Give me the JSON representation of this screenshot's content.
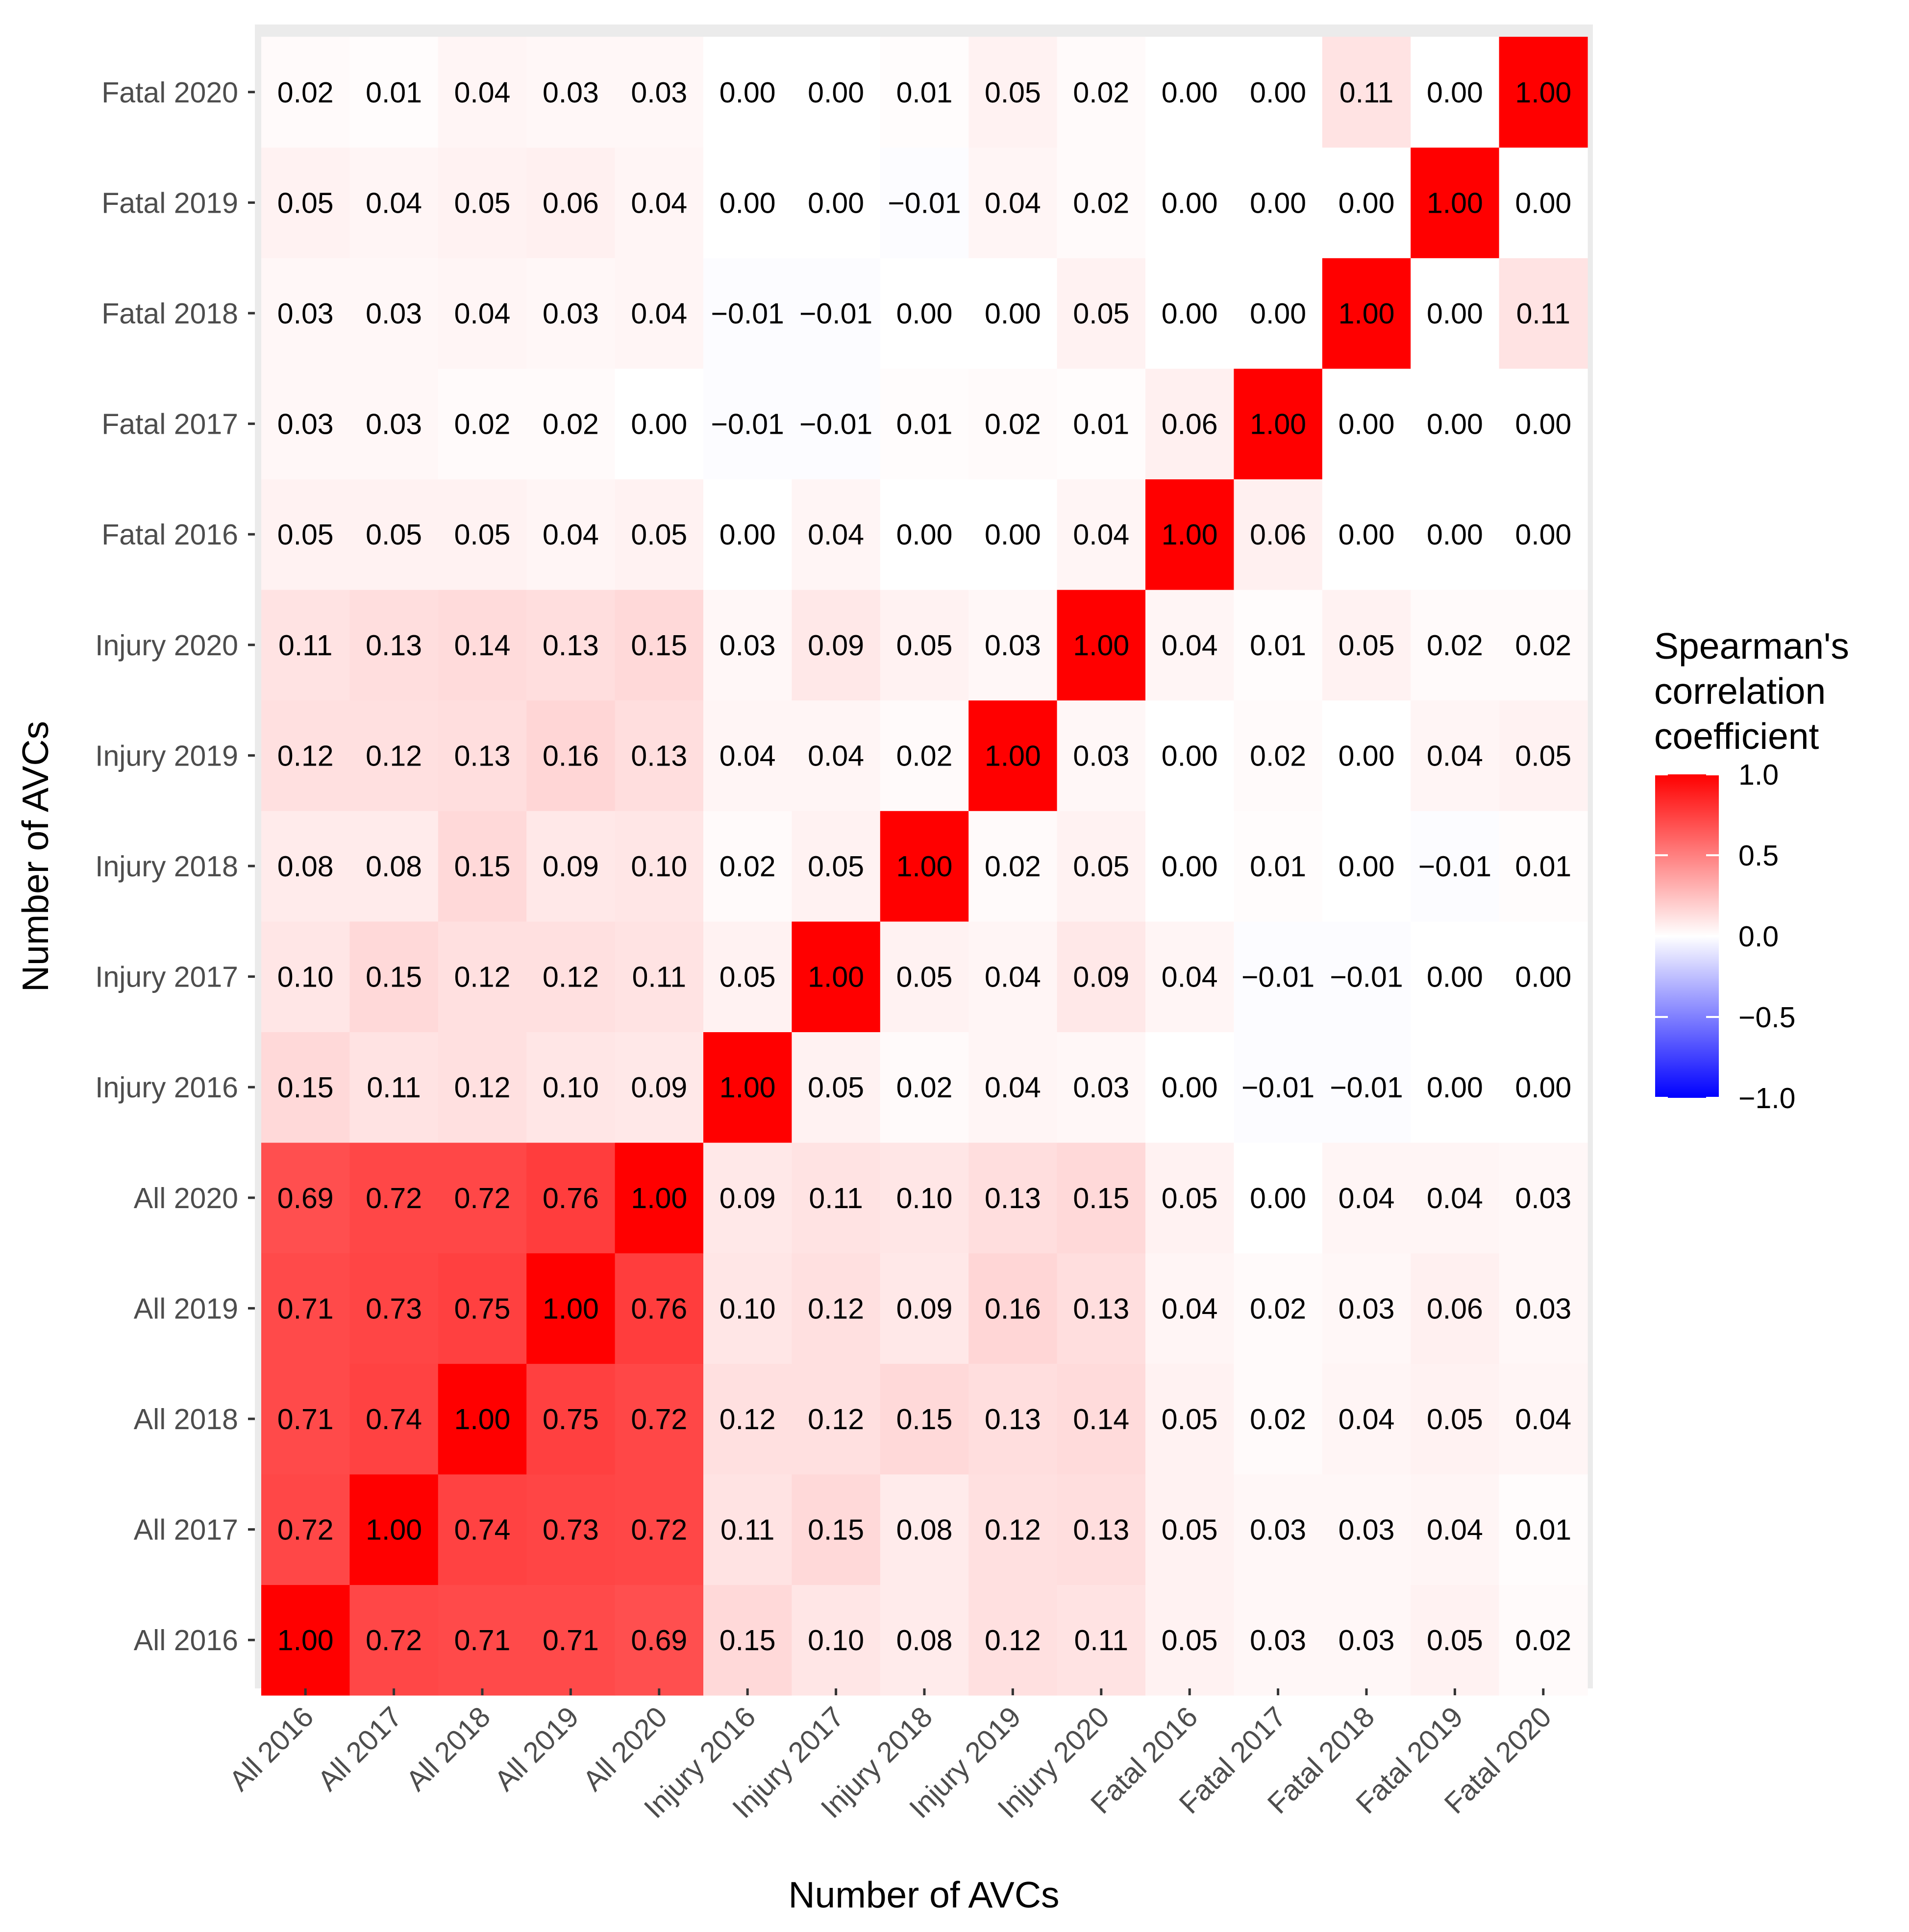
{
  "chart_data": {
    "type": "heatmap",
    "title": "",
    "xlabel": "Number of AVCs",
    "ylabel": "Number of AVCs",
    "categories": [
      "All 2016",
      "All 2017",
      "All 2018",
      "All 2019",
      "All 2020",
      "Injury 2016",
      "Injury 2017",
      "Injury 2018",
      "Injury 2019",
      "Injury 2020",
      "Fatal 2016",
      "Fatal 2017",
      "Fatal 2018",
      "Fatal 2019",
      "Fatal 2020"
    ],
    "matrix": [
      [
        1.0,
        0.72,
        0.71,
        0.71,
        0.69,
        0.15,
        0.1,
        0.08,
        0.12,
        0.11,
        0.05,
        0.03,
        0.03,
        0.05,
        0.02
      ],
      [
        0.72,
        1.0,
        0.74,
        0.73,
        0.72,
        0.11,
        0.15,
        0.08,
        0.12,
        0.13,
        0.05,
        0.03,
        0.03,
        0.04,
        0.01
      ],
      [
        0.71,
        0.74,
        1.0,
        0.75,
        0.72,
        0.12,
        0.12,
        0.15,
        0.13,
        0.14,
        0.05,
        0.02,
        0.04,
        0.05,
        0.04
      ],
      [
        0.71,
        0.73,
        0.75,
        1.0,
        0.76,
        0.1,
        0.12,
        0.09,
        0.16,
        0.13,
        0.04,
        0.02,
        0.03,
        0.06,
        0.03
      ],
      [
        0.69,
        0.72,
        0.72,
        0.76,
        1.0,
        0.09,
        0.11,
        0.1,
        0.13,
        0.15,
        0.05,
        0.0,
        0.04,
        0.04,
        0.03
      ],
      [
        0.15,
        0.11,
        0.12,
        0.1,
        0.09,
        1.0,
        0.05,
        0.02,
        0.04,
        0.03,
        0.0,
        -0.01,
        -0.01,
        0.0,
        0.0
      ],
      [
        0.1,
        0.15,
        0.12,
        0.12,
        0.11,
        0.05,
        1.0,
        0.05,
        0.04,
        0.09,
        0.04,
        -0.01,
        -0.01,
        0.0,
        0.0
      ],
      [
        0.08,
        0.08,
        0.15,
        0.09,
        0.1,
        0.02,
        0.05,
        1.0,
        0.02,
        0.05,
        0.0,
        0.01,
        0.0,
        -0.01,
        0.01
      ],
      [
        0.12,
        0.12,
        0.13,
        0.16,
        0.13,
        0.04,
        0.04,
        0.02,
        1.0,
        0.03,
        0.0,
        0.02,
        0.0,
        0.04,
        0.05
      ],
      [
        0.11,
        0.13,
        0.14,
        0.13,
        0.15,
        0.03,
        0.09,
        0.05,
        0.03,
        1.0,
        0.04,
        0.01,
        0.05,
        0.02,
        0.02
      ],
      [
        0.05,
        0.05,
        0.05,
        0.04,
        0.05,
        0.0,
        0.04,
        0.0,
        0.0,
        0.04,
        1.0,
        0.06,
        0.0,
        0.0,
        0.0
      ],
      [
        0.03,
        0.03,
        0.02,
        0.02,
        0.0,
        -0.01,
        -0.01,
        0.01,
        0.02,
        0.01,
        0.06,
        1.0,
        0.0,
        0.0,
        0.0
      ],
      [
        0.03,
        0.03,
        0.04,
        0.03,
        0.04,
        -0.01,
        -0.01,
        0.0,
        0.0,
        0.05,
        0.0,
        0.0,
        1.0,
        0.0,
        0.11
      ],
      [
        0.05,
        0.04,
        0.05,
        0.06,
        0.04,
        0.0,
        0.0,
        -0.01,
        0.04,
        0.02,
        0.0,
        0.0,
        0.0,
        1.0,
        0.0
      ],
      [
        0.02,
        0.01,
        0.04,
        0.03,
        0.03,
        0.0,
        0.0,
        0.01,
        0.05,
        0.02,
        0.0,
        0.0,
        0.11,
        0.0,
        1.0
      ]
    ],
    "value_format": "2 decimals",
    "legend": {
      "title_lines": [
        "Spearman's",
        "correlation",
        "coefficient"
      ],
      "ticks": [
        "1.0",
        "0.5",
        "0.0",
        "−0.5",
        "−1.0"
      ],
      "tick_values": [
        1.0,
        0.5,
        0.0,
        -0.5,
        -1.0
      ],
      "range": [
        -1,
        1
      ],
      "placement": "right"
    },
    "colors": {
      "high": "#ff0000",
      "mid": "#ffffff",
      "low": "#0000ff",
      "panel_background": "#ebebeb",
      "tick_text": "#4d4d4d"
    },
    "grid": false
  }
}
